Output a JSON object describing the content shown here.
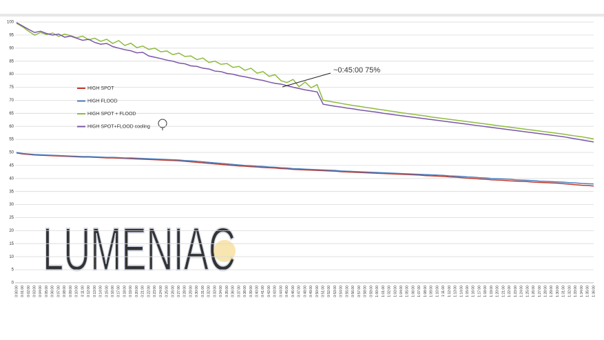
{
  "chart_data": {
    "type": "line",
    "watermark": "LUMENIAC",
    "annotation": "~0:45:00 75%",
    "categories": [
      "0:00:00",
      "0:01:00",
      "0:02:00",
      "0:03:00",
      "0:04:00",
      "0:05:00",
      "0:06:00",
      "0:07:00",
      "0:08:00",
      "0:09:00",
      "0:10:00",
      "0:11:00",
      "0:12:00",
      "0:13:00",
      "0:14:00",
      "0:15:00",
      "0:16:00",
      "0:17:00",
      "0:18:00",
      "0:19:00",
      "0:20:00",
      "0:21:00",
      "0:22:00",
      "0:23:00",
      "0:24:00",
      "0:25:00",
      "0:26:00",
      "0:27:00",
      "0:28:00",
      "0:29:00",
      "0:30:00",
      "0:31:00",
      "0:32:00",
      "0:33:00",
      "0:34:00",
      "0:35:00",
      "0:36:00",
      "0:37:00",
      "0:38:00",
      "0:39:00",
      "0:40:00",
      "0:41:00",
      "0:42:00",
      "0:43:00",
      "0:44:00",
      "0:45:00",
      "0:46:00",
      "0:47:00",
      "0:48:00",
      "0:49:00",
      "0:50:00",
      "0:51:00",
      "0:52:00",
      "0:53:00",
      "0:54:00",
      "0:55:00",
      "0:56:00",
      "0:57:00",
      "0:58:00",
      "0:59:00",
      "1:00:00",
      "1:01:00",
      "1:02:00",
      "1:03:00",
      "1:04:00",
      "1:05:00",
      "1:06:00",
      "1:07:00",
      "1:08:00",
      "1:09:00",
      "1:10:00",
      "1:11:00",
      "1:12:00",
      "1:13:00",
      "1:14:00",
      "1:15:00",
      "1:16:00",
      "1:17:00",
      "1:18:00",
      "1:19:00",
      "1:20:00",
      "1:21:00",
      "1:22:00",
      "1:23:00",
      "1:24:00",
      "1:25:00",
      "1:26:00",
      "1:27:00",
      "1:28:00",
      "1:29:00",
      "1:30:00",
      "1:31:00",
      "1:32:00",
      "1:33:00",
      "1:34:00",
      "1:35:00",
      "1:36:00"
    ],
    "series": [
      {
        "name": "HIGH SPOT",
        "color": "#c0392b",
        "values": [
          49.8,
          49.4,
          49.2,
          49.0,
          48.9,
          48.8,
          48.7,
          48.6,
          48.5,
          48.4,
          48.3,
          48.2,
          48.2,
          48.1,
          48.0,
          47.9,
          47.9,
          47.8,
          47.7,
          47.6,
          47.5,
          47.4,
          47.3,
          47.2,
          47.1,
          47.0,
          46.9,
          46.8,
          46.6,
          46.4,
          46.2,
          46.0,
          45.8,
          45.6,
          45.4,
          45.2,
          45.0,
          44.8,
          44.7,
          44.5,
          44.4,
          44.2,
          44.1,
          44.0,
          43.8,
          43.7,
          43.5,
          43.4,
          43.3,
          43.2,
          43.1,
          43.0,
          42.9,
          42.8,
          42.6,
          42.5,
          42.4,
          42.3,
          42.2,
          42.1,
          42.0,
          41.9,
          41.8,
          41.7,
          41.6,
          41.5,
          41.4,
          41.3,
          41.1,
          41.0,
          40.9,
          40.8,
          40.6,
          40.5,
          40.3,
          40.1,
          40.0,
          39.8,
          39.7,
          39.5,
          39.4,
          39.3,
          39.1,
          39.0,
          38.9,
          38.8,
          38.6,
          38.5,
          38.4,
          38.3,
          38.2,
          38.0,
          37.8,
          37.6,
          37.4,
          37.3,
          37.1
        ]
      },
      {
        "name": "HIGH FLOOD",
        "color": "#4a7fc1",
        "values": [
          50.0,
          49.6,
          49.4,
          49.2,
          49.1,
          49.0,
          48.9,
          48.8,
          48.7,
          48.6,
          48.5,
          48.4,
          48.4,
          48.3,
          48.2,
          48.1,
          48.1,
          48.0,
          47.9,
          47.9,
          47.8,
          47.7,
          47.6,
          47.5,
          47.4,
          47.3,
          47.2,
          47.1,
          46.9,
          46.8,
          46.6,
          46.4,
          46.2,
          46.0,
          45.8,
          45.6,
          45.4,
          45.2,
          45.0,
          44.9,
          44.7,
          44.6,
          44.4,
          44.3,
          44.1,
          44.0,
          43.8,
          43.7,
          43.6,
          43.5,
          43.4,
          43.3,
          43.2,
          43.1,
          42.9,
          42.8,
          42.7,
          42.6,
          42.5,
          42.4,
          42.3,
          42.2,
          42.1,
          42.0,
          41.9,
          41.8,
          41.7,
          41.6,
          41.5,
          41.4,
          41.3,
          41.2,
          41.0,
          40.9,
          40.8,
          40.6,
          40.5,
          40.3,
          40.2,
          40.0,
          39.9,
          39.8,
          39.7,
          39.5,
          39.4,
          39.3,
          39.2,
          39.0,
          38.9,
          38.8,
          38.7,
          38.6,
          38.4,
          38.3,
          38.1,
          38.0,
          37.9
        ]
      },
      {
        "name": "HIGH SPOT + FLOOD",
        "color": "#8dbb3c",
        "values": [
          99.5,
          98.2,
          96.5,
          95.0,
          96.0,
          95.2,
          95.8,
          94.5,
          95.4,
          94.8,
          94.0,
          94.6,
          93.2,
          93.8,
          92.6,
          93.4,
          91.8,
          92.9,
          91.0,
          91.9,
          90.2,
          90.8,
          89.5,
          90.0,
          88.6,
          88.9,
          87.5,
          88.1,
          86.8,
          87.0,
          85.6,
          86.2,
          84.5,
          85.0,
          83.8,
          84.1,
          82.6,
          83.0,
          81.5,
          82.3,
          80.4,
          81.0,
          79.2,
          79.8,
          77.5,
          76.8,
          78.0,
          75.2,
          77.0,
          74.8,
          76.0,
          70.0,
          69.6,
          69.2,
          68.8,
          68.4,
          68.0,
          67.7,
          67.3,
          67.0,
          66.6,
          66.3,
          65.9,
          65.6,
          65.2,
          64.9,
          64.6,
          64.3,
          64.0,
          63.6,
          63.3,
          63.0,
          62.7,
          62.4,
          62.1,
          61.8,
          61.5,
          61.2,
          60.9,
          60.6,
          60.3,
          60.0,
          59.7,
          59.4,
          59.1,
          58.8,
          58.5,
          58.2,
          57.9,
          57.6,
          57.3,
          57.0,
          56.6,
          56.3,
          56.0,
          55.6,
          55.2
        ]
      },
      {
        "name": "HIGH SPOT+FLOOD cooling",
        "color": "#7b55a6",
        "values": [
          99.8,
          98.5,
          97.2,
          96.0,
          96.5,
          95.6,
          95.0,
          95.4,
          94.2,
          94.6,
          93.8,
          93.0,
          93.4,
          92.2,
          91.5,
          91.8,
          90.6,
          90.0,
          89.4,
          89.0,
          88.2,
          88.4,
          87.0,
          86.5,
          86.0,
          85.4,
          85.0,
          84.3,
          84.0,
          83.2,
          83.0,
          82.3,
          82.0,
          81.2,
          81.0,
          80.3,
          80.0,
          79.4,
          79.0,
          78.5,
          78.0,
          77.6,
          77.0,
          76.5,
          76.2,
          75.6,
          75.0,
          74.5,
          74.0,
          73.6,
          73.2,
          68.5,
          68.1,
          67.7,
          67.4,
          67.0,
          66.7,
          66.3,
          66.0,
          65.7,
          65.4,
          65.0,
          64.7,
          64.4,
          64.1,
          63.8,
          63.5,
          63.2,
          62.9,
          62.6,
          62.3,
          62.0,
          61.7,
          61.4,
          61.1,
          60.8,
          60.5,
          60.2,
          59.9,
          59.6,
          59.3,
          59.0,
          58.7,
          58.4,
          58.1,
          57.8,
          57.5,
          57.2,
          56.9,
          56.6,
          56.3,
          56.0,
          55.6,
          55.2,
          54.8,
          54.4,
          54.0
        ]
      }
    ],
    "ylim": [
      0,
      100
    ],
    "yticks": [
      0,
      5,
      10,
      15,
      20,
      25,
      30,
      35,
      40,
      45,
      50,
      55,
      60,
      65,
      70,
      75,
      80,
      85,
      90,
      95,
      100
    ],
    "grid": true,
    "legend": "left"
  }
}
